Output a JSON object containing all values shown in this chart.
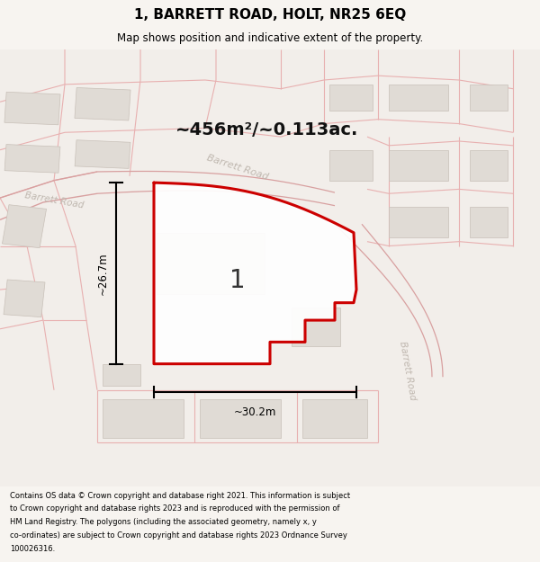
{
  "title": "1, BARRETT ROAD, HOLT, NR25 6EQ",
  "subtitle": "Map shows position and indicative extent of the property.",
  "area_label": "~456m²/~0.113ac.",
  "plot_number": "1",
  "width_label": "~30.2m",
  "height_label": "~26.7m",
  "footer": "Contains OS data © Crown copyright and database right 2021. This information is subject to Crown copyright and database rights 2023 and is reproduced with the permission of HM Land Registry. The polygons (including the associated geometry, namely x, y co-ordinates) are subject to Crown copyright and database rights 2023 Ordnance Survey 100026316.",
  "bg_color": "#f7f4f0",
  "map_bg": "#f2eeea",
  "road_line_color": "#e8b0b0",
  "road_fill_color": "#f5e0e0",
  "building_fill": "#e0dbd5",
  "building_edge": "#c8c0b8",
  "plot_fill": "#ffffff",
  "plot_edge": "#cc0000",
  "road_label_color": "#c0b8b0",
  "dim_color": "#000000",
  "title_color": "#000000",
  "footer_color": "#000000",
  "area_color": "#111111"
}
